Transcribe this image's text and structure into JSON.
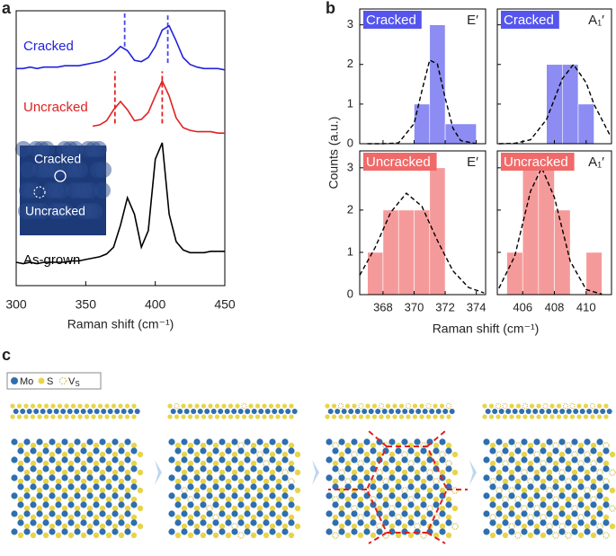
{
  "panel_labels": [
    "a",
    "b",
    "c"
  ],
  "chart_data": [
    {
      "type": "line",
      "xlabel": "Raman shift (cm⁻¹)",
      "x": [
        300,
        305,
        310,
        315,
        320,
        325,
        330,
        335,
        340,
        345,
        350,
        355,
        360,
        365,
        370,
        375,
        380,
        385,
        390,
        395,
        400,
        405,
        410,
        415,
        420,
        425,
        430,
        435,
        440,
        445,
        450
      ],
      "xlim": [
        300,
        450
      ],
      "xticks": [
        300,
        350,
        400,
        450
      ],
      "ylim": [
        0,
        10
      ],
      "series": [
        {
          "name": "Cracked",
          "color": "#2222dd",
          "values": [
            7.9,
            7.9,
            7.95,
            7.9,
            7.95,
            7.95,
            7.95,
            8.0,
            8.0,
            8.0,
            8.05,
            8.1,
            8.15,
            8.25,
            8.45,
            8.7,
            8.55,
            8.2,
            8.15,
            8.3,
            8.7,
            9.3,
            9.45,
            8.9,
            8.3,
            8.05,
            7.95,
            7.9,
            7.9,
            7.9,
            7.85
          ]
        },
        {
          "name": "Uncracked",
          "color": "#e02020",
          "values": [
            null,
            null,
            null,
            null,
            null,
            null,
            null,
            null,
            null,
            null,
            null,
            5.8,
            5.85,
            6.0,
            6.4,
            6.7,
            6.4,
            6.0,
            6.05,
            6.3,
            6.9,
            7.45,
            6.9,
            6.1,
            5.75,
            5.65,
            5.6,
            5.6,
            5.6,
            5.55,
            5.55
          ]
        },
        {
          "name": "As-grown",
          "color": "#000000",
          "values": [
            0.85,
            0.8,
            0.85,
            0.8,
            0.85,
            0.85,
            0.85,
            0.85,
            0.9,
            0.9,
            0.95,
            1.0,
            1.05,
            1.15,
            1.4,
            2.2,
            3.2,
            2.6,
            1.4,
            2.0,
            4.6,
            5.2,
            2.6,
            1.6,
            1.3,
            1.2,
            1.2,
            1.2,
            1.25,
            1.25,
            1.25
          ]
        }
      ],
      "vlines": [
        {
          "x": 378,
          "y": [
            8.7,
            9.9
          ],
          "color": "#4444ee"
        },
        {
          "x": 409,
          "y": [
            8.1,
            9.9
          ],
          "color": "#4444ee"
        },
        {
          "x": 371,
          "y": [
            5.9,
            7.8
          ],
          "color": "#e02020"
        },
        {
          "x": 405,
          "y": [
            5.9,
            7.8
          ],
          "color": "#e02020"
        }
      ],
      "inset": {
        "labels": [
          "Cracked",
          "Uncracked"
        ]
      }
    },
    {
      "type": "histogram",
      "label": "Cracked",
      "label_color": "#5555ee",
      "mode": "E′",
      "bins": [
        370,
        371,
        372,
        374
      ],
      "values": [
        1,
        3,
        0.5
      ],
      "color": "#8c8cf2",
      "xlim": [
        366.5,
        374.6
      ],
      "xticks": [
        368,
        370,
        372,
        374
      ],
      "ylim": [
        0,
        3.4
      ],
      "yticks": [
        0,
        1,
        2,
        3
      ],
      "fit": {
        "x": [
          367,
          368,
          369,
          370,
          370.5,
          371,
          371.5,
          372,
          372.5,
          373,
          374
        ],
        "values": [
          0,
          0,
          0.02,
          0.51,
          1.33,
          2.11,
          2.01,
          1.15,
          0.39,
          0.08,
          0
        ]
      }
    },
    {
      "type": "histogram",
      "label": "Cracked",
      "label_color": "#5555ee",
      "mode": "A₁′",
      "bins": [
        407.5,
        408.5,
        409.5,
        410.5
      ],
      "values": [
        2,
        2,
        1
      ],
      "color": "#8c8cf2",
      "xlim": [
        404.4,
        411.6
      ],
      "xticks": [
        406,
        408,
        410
      ],
      "ylim": [
        0,
        3.4
      ],
      "yticks": [
        0,
        1,
        2,
        3
      ],
      "fit": {
        "x": [
          404.5,
          405.5,
          406.5,
          407.5,
          408.5,
          409.2,
          410,
          410.5,
          411.5
        ],
        "values": [
          0,
          0.01,
          0.1,
          0.61,
          1.64,
          2,
          1.54,
          0.99,
          0.22
        ]
      }
    },
    {
      "type": "histogram",
      "label": "Uncracked",
      "label_color": "#f06a6a",
      "mode": "E′",
      "bins": [
        367,
        368,
        369,
        370,
        371,
        372
      ],
      "values": [
        1,
        2,
        2,
        2,
        3
      ],
      "color": "#f59a9a",
      "xlim": [
        366.5,
        374.6
      ],
      "xticks": [
        368,
        370,
        372,
        374
      ],
      "ylim": [
        0,
        3.4
      ],
      "yticks": [
        0,
        1,
        2,
        3
      ],
      "fit": {
        "x": [
          366.5,
          367.5,
          368.5,
          369.5,
          370.5,
          371.5,
          372.5,
          373.5,
          374.5
        ],
        "values": [
          0.46,
          1.12,
          1.95,
          2.4,
          2.09,
          1.28,
          0.56,
          0.17,
          0.04
        ]
      }
    },
    {
      "type": "histogram",
      "label": "Uncracked",
      "label_color": "#f06a6a",
      "mode": "A₁′",
      "bins": [
        405,
        406,
        407,
        408,
        409,
        410,
        411
      ],
      "values": [
        1,
        3,
        3,
        2,
        0,
        1
      ],
      "color": "#f59a9a",
      "xlim": [
        404.4,
        411.6
      ],
      "xticks": [
        406,
        408,
        410
      ],
      "ylim": [
        0,
        3.4
      ],
      "yticks": [
        0,
        1,
        2,
        3
      ],
      "fit": {
        "x": [
          404.5,
          405.5,
          406.5,
          407.2,
          408,
          409,
          410,
          411
        ],
        "values": [
          0.15,
          0.91,
          2.45,
          3,
          2.3,
          0.79,
          0.12,
          0.01
        ]
      }
    }
  ],
  "panel_b": {
    "xlabel": "Raman shift (cm⁻¹)",
    "ylabel": "Counts (a.u.)"
  },
  "legend_c": {
    "mo": "Mo",
    "s": "S",
    "vs": {
      "symbol": "V",
      "subscript": "S"
    }
  }
}
